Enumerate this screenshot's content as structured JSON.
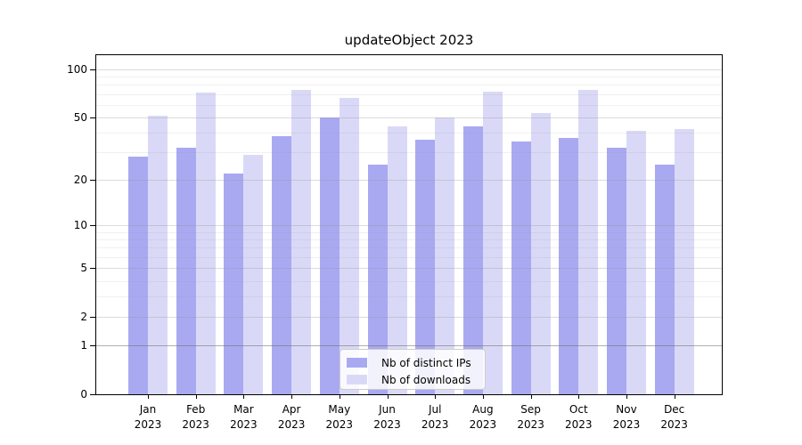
{
  "figure": {
    "title": "updateObject 2023"
  },
  "chart_data": {
    "type": "bar",
    "title": "updateObject 2023",
    "categories": [
      "Jan 2023",
      "Feb 2023",
      "Mar 2023",
      "Apr 2023",
      "May 2023",
      "Jun 2023",
      "Jul 2023",
      "Aug 2023",
      "Sep 2023",
      "Oct 2023",
      "Nov 2023",
      "Dec 2023"
    ],
    "series": [
      {
        "name": "Nb of distinct IPs",
        "color": "#a9a9f1",
        "values": [
          28,
          32,
          22,
          38,
          50,
          25,
          36,
          44,
          35,
          37,
          32,
          25
        ]
      },
      {
        "name": "Nb of downloads",
        "color": "#d9d9f7",
        "values": [
          51,
          71,
          29,
          74,
          66,
          44,
          50,
          72,
          53,
          74,
          41,
          42
        ]
      }
    ],
    "xlabel": "",
    "ylabel": "",
    "yscale": "log1p",
    "ylim": [
      0,
      122
    ],
    "yticks": [
      0,
      1,
      2,
      5,
      10,
      20,
      50,
      100
    ],
    "minor_yticks": [
      3,
      4,
      6,
      7,
      8,
      9,
      30,
      40,
      60,
      70,
      80,
      90
    ],
    "grid": true,
    "legend_position": "lower center"
  }
}
